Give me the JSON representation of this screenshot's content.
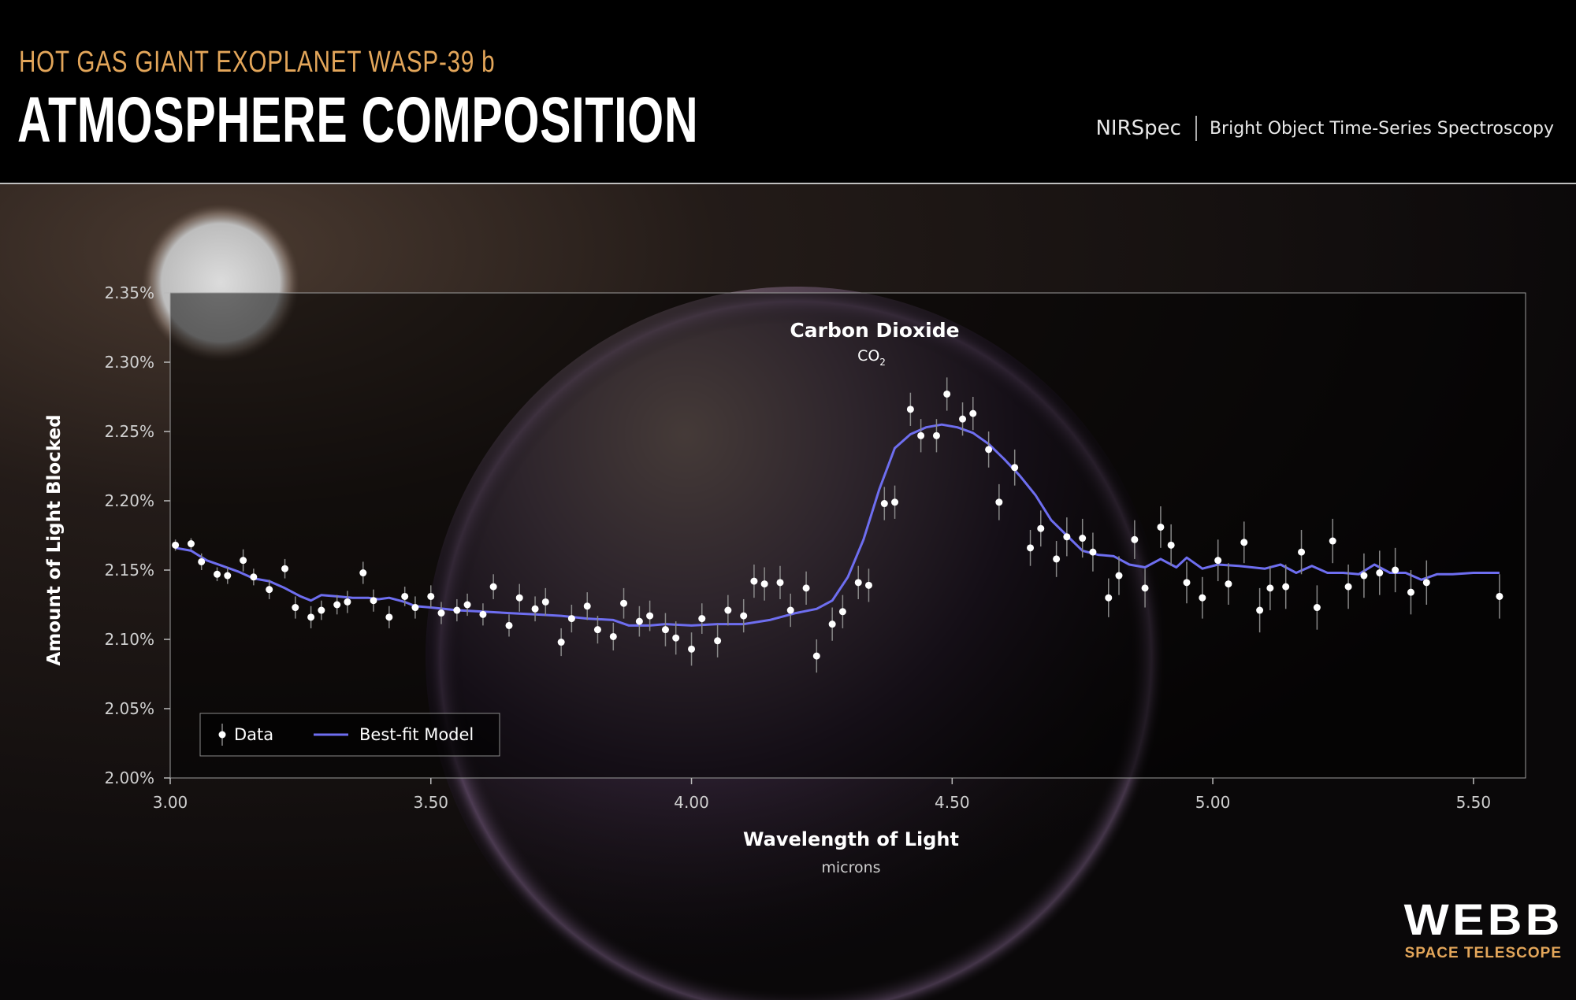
{
  "header": {
    "supertitle": "HOT GAS GIANT EXOPLANET WASP-39 b",
    "title": "ATMOSPHERE COMPOSITION",
    "instrument": "NIRSpec",
    "mode": "Bright Object Time-Series Spectroscopy"
  },
  "branding": {
    "name": "WEBB",
    "subtitle": "SPACE TELESCOPE"
  },
  "colors": {
    "accent": "#e3a65a",
    "model": "#6e6ef0",
    "data": "#ffffff",
    "errorbar": "#888888"
  },
  "chart_data": {
    "type": "scatter",
    "xlabel": "Wavelength of Light",
    "xunit": "microns",
    "ylabel": "Amount of Light Blocked",
    "xlim": [
      3.0,
      5.6
    ],
    "ylim": [
      2.0,
      2.35
    ],
    "xticks": [
      3.0,
      3.5,
      4.0,
      4.5,
      5.0,
      5.5
    ],
    "xtick_labels": [
      "3.00",
      "3.50",
      "4.00",
      "4.50",
      "5.00",
      "5.50"
    ],
    "yticks": [
      2.0,
      2.05,
      2.1,
      2.15,
      2.2,
      2.25,
      2.3,
      2.35
    ],
    "ytick_labels": [
      "2.00%",
      "2.05%",
      "2.10%",
      "2.15%",
      "2.20%",
      "2.25%",
      "2.30%",
      "2.35%"
    ],
    "grid": false,
    "legend": {
      "position": "bottom-left",
      "data_label": "Data",
      "model_label": "Best-fit Model"
    },
    "annotation": {
      "title": "Carbon Dioxide",
      "formula": "CO",
      "subscript": "2",
      "x": 4.35,
      "y": 2.31
    },
    "series": [
      {
        "name": "Data",
        "points": [
          [
            3.01,
            2.168,
            0.004
          ],
          [
            3.04,
            2.169,
            0.004
          ],
          [
            3.06,
            2.156,
            0.006
          ],
          [
            3.09,
            2.147,
            0.005
          ],
          [
            3.11,
            2.146,
            0.006
          ],
          [
            3.14,
            2.157,
            0.008
          ],
          [
            3.16,
            2.145,
            0.006
          ],
          [
            3.19,
            2.136,
            0.007
          ],
          [
            3.22,
            2.151,
            0.007
          ],
          [
            3.24,
            2.123,
            0.008
          ],
          [
            3.27,
            2.116,
            0.008
          ],
          [
            3.29,
            2.121,
            0.007
          ],
          [
            3.32,
            2.125,
            0.007
          ],
          [
            3.34,
            2.127,
            0.008
          ],
          [
            3.37,
            2.148,
            0.008
          ],
          [
            3.39,
            2.128,
            0.008
          ],
          [
            3.42,
            2.116,
            0.008
          ],
          [
            3.45,
            2.131,
            0.007
          ],
          [
            3.47,
            2.123,
            0.008
          ],
          [
            3.5,
            2.131,
            0.008
          ],
          [
            3.52,
            2.119,
            0.008
          ],
          [
            3.55,
            2.121,
            0.008
          ],
          [
            3.57,
            2.125,
            0.008
          ],
          [
            3.6,
            2.118,
            0.008
          ],
          [
            3.62,
            2.138,
            0.009
          ],
          [
            3.65,
            2.11,
            0.008
          ],
          [
            3.67,
            2.13,
            0.01
          ],
          [
            3.7,
            2.122,
            0.009
          ],
          [
            3.72,
            2.127,
            0.01
          ],
          [
            3.75,
            2.098,
            0.01
          ],
          [
            3.77,
            2.115,
            0.01
          ],
          [
            3.8,
            2.124,
            0.01
          ],
          [
            3.82,
            2.107,
            0.01
          ],
          [
            3.85,
            2.102,
            0.01
          ],
          [
            3.87,
            2.126,
            0.011
          ],
          [
            3.9,
            2.113,
            0.011
          ],
          [
            3.92,
            2.117,
            0.011
          ],
          [
            3.95,
            2.107,
            0.012
          ],
          [
            3.97,
            2.101,
            0.012
          ],
          [
            4.0,
            2.093,
            0.012
          ],
          [
            4.02,
            2.115,
            0.011
          ],
          [
            4.05,
            2.099,
            0.012
          ],
          [
            4.07,
            2.121,
            0.011
          ],
          [
            4.1,
            2.117,
            0.012
          ],
          [
            4.12,
            2.142,
            0.012
          ],
          [
            4.14,
            2.14,
            0.012
          ],
          [
            4.17,
            2.141,
            0.012
          ],
          [
            4.19,
            2.121,
            0.012
          ],
          [
            4.22,
            2.137,
            0.012
          ],
          [
            4.24,
            2.088,
            0.012
          ],
          [
            4.27,
            2.111,
            0.012
          ],
          [
            4.29,
            2.12,
            0.012
          ],
          [
            4.32,
            2.141,
            0.012
          ],
          [
            4.34,
            2.139,
            0.012
          ],
          [
            4.37,
            2.198,
            0.012
          ],
          [
            4.39,
            2.199,
            0.012
          ],
          [
            4.42,
            2.266,
            0.012
          ],
          [
            4.44,
            2.247,
            0.012
          ],
          [
            4.47,
            2.247,
            0.012
          ],
          [
            4.49,
            2.277,
            0.012
          ],
          [
            4.52,
            2.259,
            0.012
          ],
          [
            4.54,
            2.263,
            0.012
          ],
          [
            4.57,
            2.237,
            0.013
          ],
          [
            4.59,
            2.199,
            0.013
          ],
          [
            4.62,
            2.224,
            0.013
          ],
          [
            4.65,
            2.166,
            0.013
          ],
          [
            4.67,
            2.18,
            0.013
          ],
          [
            4.7,
            2.158,
            0.013
          ],
          [
            4.72,
            2.174,
            0.014
          ],
          [
            4.75,
            2.173,
            0.014
          ],
          [
            4.77,
            2.163,
            0.014
          ],
          [
            4.8,
            2.13,
            0.014
          ],
          [
            4.82,
            2.146,
            0.014
          ],
          [
            4.85,
            2.172,
            0.014
          ],
          [
            4.87,
            2.137,
            0.014
          ],
          [
            4.9,
            2.181,
            0.015
          ],
          [
            4.92,
            2.168,
            0.015
          ],
          [
            4.95,
            2.141,
            0.015
          ],
          [
            4.98,
            2.13,
            0.015
          ],
          [
            5.01,
            2.157,
            0.015
          ],
          [
            5.03,
            2.14,
            0.015
          ],
          [
            5.06,
            2.17,
            0.015
          ],
          [
            5.09,
            2.121,
            0.016
          ],
          [
            5.11,
            2.137,
            0.016
          ],
          [
            5.14,
            2.138,
            0.016
          ],
          [
            5.17,
            2.163,
            0.016
          ],
          [
            5.2,
            2.123,
            0.016
          ],
          [
            5.23,
            2.171,
            0.016
          ],
          [
            5.26,
            2.138,
            0.016
          ],
          [
            5.29,
            2.146,
            0.016
          ],
          [
            5.32,
            2.148,
            0.016
          ],
          [
            5.35,
            2.15,
            0.016
          ],
          [
            5.38,
            2.134,
            0.016
          ],
          [
            5.41,
            2.141,
            0.016
          ],
          [
            5.55,
            2.131,
            0.016
          ]
        ]
      },
      {
        "name": "Best-fit Model",
        "points": [
          [
            3.01,
            2.166
          ],
          [
            3.04,
            2.164
          ],
          [
            3.07,
            2.157
          ],
          [
            3.1,
            2.153
          ],
          [
            3.13,
            2.149
          ],
          [
            3.16,
            2.144
          ],
          [
            3.19,
            2.142
          ],
          [
            3.22,
            2.137
          ],
          [
            3.25,
            2.131
          ],
          [
            3.27,
            2.128
          ],
          [
            3.29,
            2.132
          ],
          [
            3.32,
            2.131
          ],
          [
            3.35,
            2.13
          ],
          [
            3.38,
            2.13
          ],
          [
            3.4,
            2.129
          ],
          [
            3.42,
            2.13
          ],
          [
            3.45,
            2.127
          ],
          [
            3.47,
            2.124
          ],
          [
            3.5,
            2.123
          ],
          [
            3.55,
            2.121
          ],
          [
            3.6,
            2.12
          ],
          [
            3.65,
            2.119
          ],
          [
            3.7,
            2.118
          ],
          [
            3.75,
            2.117
          ],
          [
            3.8,
            2.115
          ],
          [
            3.85,
            2.114
          ],
          [
            3.88,
            2.11
          ],
          [
            3.92,
            2.11
          ],
          [
            3.95,
            2.111
          ],
          [
            4.0,
            2.11
          ],
          [
            4.05,
            2.111
          ],
          [
            4.1,
            2.111
          ],
          [
            4.15,
            2.114
          ],
          [
            4.2,
            2.119
          ],
          [
            4.24,
            2.122
          ],
          [
            4.27,
            2.128
          ],
          [
            4.3,
            2.145
          ],
          [
            4.33,
            2.172
          ],
          [
            4.36,
            2.208
          ],
          [
            4.39,
            2.238
          ],
          [
            4.42,
            2.248
          ],
          [
            4.45,
            2.253
          ],
          [
            4.48,
            2.255
          ],
          [
            4.51,
            2.253
          ],
          [
            4.54,
            2.249
          ],
          [
            4.57,
            2.241
          ],
          [
            4.6,
            2.23
          ],
          [
            4.63,
            2.218
          ],
          [
            4.66,
            2.204
          ],
          [
            4.69,
            2.186
          ],
          [
            4.72,
            2.175
          ],
          [
            4.75,
            2.164
          ],
          [
            4.78,
            2.161
          ],
          [
            4.81,
            2.16
          ],
          [
            4.84,
            2.154
          ],
          [
            4.87,
            2.152
          ],
          [
            4.9,
            2.158
          ],
          [
            4.93,
            2.152
          ],
          [
            4.95,
            2.159
          ],
          [
            4.98,
            2.151
          ],
          [
            5.01,
            2.154
          ],
          [
            5.05,
            2.153
          ],
          [
            5.1,
            2.151
          ],
          [
            5.13,
            2.154
          ],
          [
            5.16,
            2.148
          ],
          [
            5.19,
            2.153
          ],
          [
            5.22,
            2.148
          ],
          [
            5.25,
            2.148
          ],
          [
            5.28,
            2.147
          ],
          [
            5.31,
            2.154
          ],
          [
            5.34,
            2.148
          ],
          [
            5.37,
            2.148
          ],
          [
            5.4,
            2.143
          ],
          [
            5.43,
            2.147
          ],
          [
            5.46,
            2.147
          ],
          [
            5.5,
            2.148
          ],
          [
            5.55,
            2.148
          ]
        ]
      }
    ]
  }
}
